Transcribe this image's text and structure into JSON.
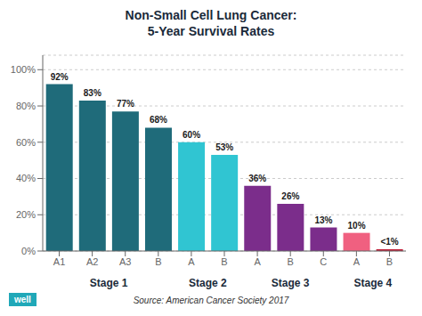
{
  "chart_data": {
    "type": "bar",
    "title": "Non-Small Cell Lung Cancer:\n5-Year Survival Rates",
    "categories": [
      "A1",
      "A2",
      "A3",
      "B",
      "A",
      "B",
      "A",
      "B",
      "C",
      "A",
      "B"
    ],
    "values": [
      92,
      83,
      77,
      68,
      60,
      53,
      36,
      26,
      13,
      10,
      1
    ],
    "value_labels": [
      "92%",
      "83%",
      "77%",
      "68%",
      "60%",
      "53%",
      "36%",
      "26%",
      "13%",
      "10%",
      "<1%"
    ],
    "data_labels": true,
    "colors": [
      "#1f6b7a",
      "#1f6b7a",
      "#1f6b7a",
      "#1f6b7a",
      "#30c5d2",
      "#30c5d2",
      "#7b2d8b",
      "#7b2d8b",
      "#7b2d8b",
      "#f06080",
      "#c0203a"
    ],
    "groups": [
      "Stage 1",
      "Stage 1",
      "Stage 1",
      "Stage 1",
      "Stage 2",
      "Stage 2",
      "Stage 3",
      "Stage 3",
      "Stage 3",
      "Stage 4",
      "Stage 4"
    ],
    "ylim": [
      0,
      108
    ],
    "yticks": [
      {
        "value": 0,
        "label": "0%"
      },
      {
        "value": 20,
        "label": "20%"
      },
      {
        "value": 40,
        "label": "40%"
      },
      {
        "value": 60,
        "label": "60%"
      },
      {
        "value": 80,
        "label": "80%"
      },
      {
        "value": 100,
        "label": "100%"
      }
    ],
    "grid": true,
    "annotations": [
      "Source: American Cancer Society 2017",
      "well"
    ]
  }
}
